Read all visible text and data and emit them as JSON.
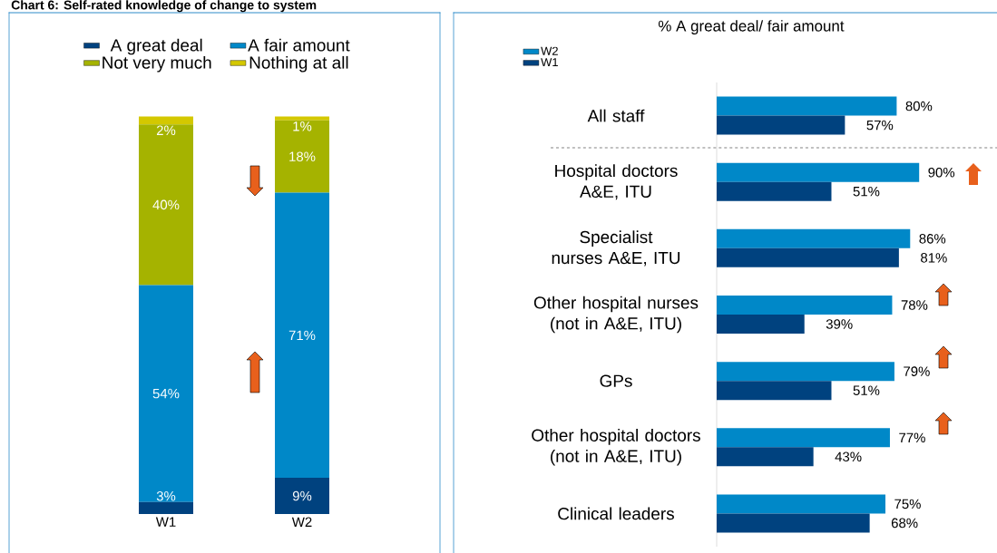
{
  "chart_data": [
    {
      "type": "bar",
      "title": "Chart 6: Self-rated knowledge of change to system",
      "stacked": true,
      "legend": "top",
      "categories": [
        "W1",
        "W2"
      ],
      "series": [
        {
          "name": "A great deal",
          "color": "#00427f",
          "values": [
            3,
            9
          ],
          "value_labels": [
            "3%",
            "9%"
          ]
        },
        {
          "name": "A fair amount",
          "color": "#0088c8",
          "values": [
            54,
            71
          ],
          "value_labels": [
            "54%",
            "71%"
          ]
        },
        {
          "name": "Not very much",
          "color": "#a5b300",
          "values": [
            40,
            18
          ],
          "value_labels": [
            "40%",
            "18%"
          ]
        },
        {
          "name": "Nothing at all",
          "color": "#d4c800",
          "values": [
            2,
            1
          ],
          "value_labels": [
            "2%",
            "1%"
          ]
        }
      ]
    },
    {
      "type": "bar",
      "title": "% A great deal/ fair amount",
      "orientation": "horizontal",
      "legend": "top left",
      "categories": [
        "All staff",
        "Hospital doctors A&E, ITU",
        "Specialist nurses A&E, ITU",
        "Other hospital nurses (not in A&E, ITU)",
        "GPs",
        "Other hospital doctors (not in A&E, ITU)",
        "Clinical leaders"
      ],
      "series": [
        {
          "name": "W2",
          "color": "#0088c8",
          "values": [
            80,
            90,
            86,
            78,
            79,
            77,
            75
          ],
          "value_labels": [
            "80%",
            "90%",
            "86%",
            "78%",
            "79%",
            "77%",
            "75%"
          ]
        },
        {
          "name": "W1",
          "color": "#00427f",
          "values": [
            57,
            51,
            81,
            39,
            51,
            43,
            68
          ],
          "value_labels": [
            "57%",
            "51%",
            "81%",
            "39%",
            "51%",
            "43%",
            "68%"
          ]
        }
      ]
    }
  ]
}
